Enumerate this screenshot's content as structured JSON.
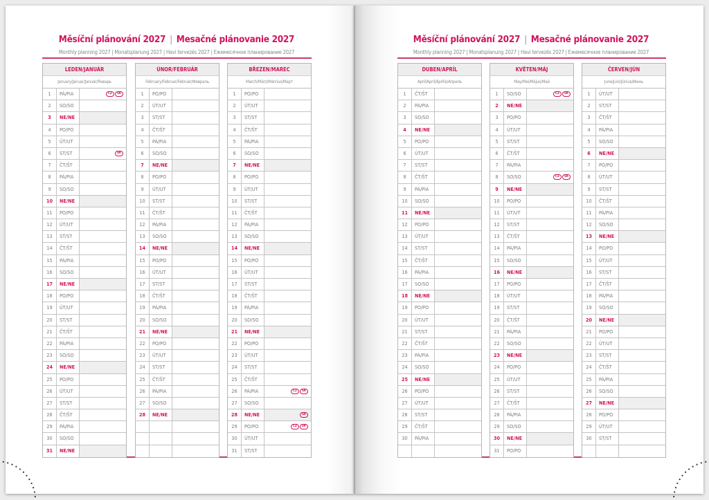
{
  "heading": {
    "title_cz": "Měsíční plánování 2027",
    "title_sk": "Mesačné plánovanie 2027",
    "separator": "|",
    "subtitle": "Monthly planning 2027 | Monatsplanung 2027 | Havi tervezés 2027 | Ежемесячное планирование 2027"
  },
  "weekdays": [
    "PO/PO",
    "ÚT/UT",
    "ST/ST",
    "ČT/ŠT",
    "PÁ/PIA",
    "SO/SO",
    "NE/NE"
  ],
  "colors": {
    "accent": "#d0155b",
    "sunday_fill": "#efefef",
    "border": "#b5b5b5"
  },
  "months": [
    {
      "name": "LEDEN/JANUÁR",
      "translations": "January/Januar/Január/Январь",
      "first_weekday": 4,
      "length": 31,
      "holidays": {
        "1": [
          "CZ",
          "SK"
        ],
        "6": [
          "SK"
        ]
      }
    },
    {
      "name": "ÚNOR/FEBRUÁR",
      "translations": "February/Februar/Február/Февраль",
      "first_weekday": 0,
      "length": 28,
      "holidays": {}
    },
    {
      "name": "BŘEZEN/MAREC",
      "translations": "March/März/Március/Март",
      "first_weekday": 0,
      "length": 31,
      "holidays": {
        "26": [
          "CZ",
          "SK"
        ],
        "28": [
          "SK"
        ],
        "29": [
          "CZ",
          "SK"
        ]
      }
    },
    {
      "name": "DUBEN/APRÍL",
      "translations": "April/April/Április/Апрель",
      "first_weekday": 3,
      "length": 30,
      "holidays": {}
    },
    {
      "name": "KVĚTEN/MÁJ",
      "translations": "May/Mai/Május/Май",
      "first_weekday": 5,
      "length": 31,
      "holidays": {
        "1": [
          "CZ",
          "SK"
        ],
        "8": [
          "CZ",
          "SK"
        ]
      }
    },
    {
      "name": "ČERVEN/JÚN",
      "translations": "June/Juni/Június/Июнь",
      "first_weekday": 1,
      "length": 30,
      "holidays": {}
    }
  ]
}
